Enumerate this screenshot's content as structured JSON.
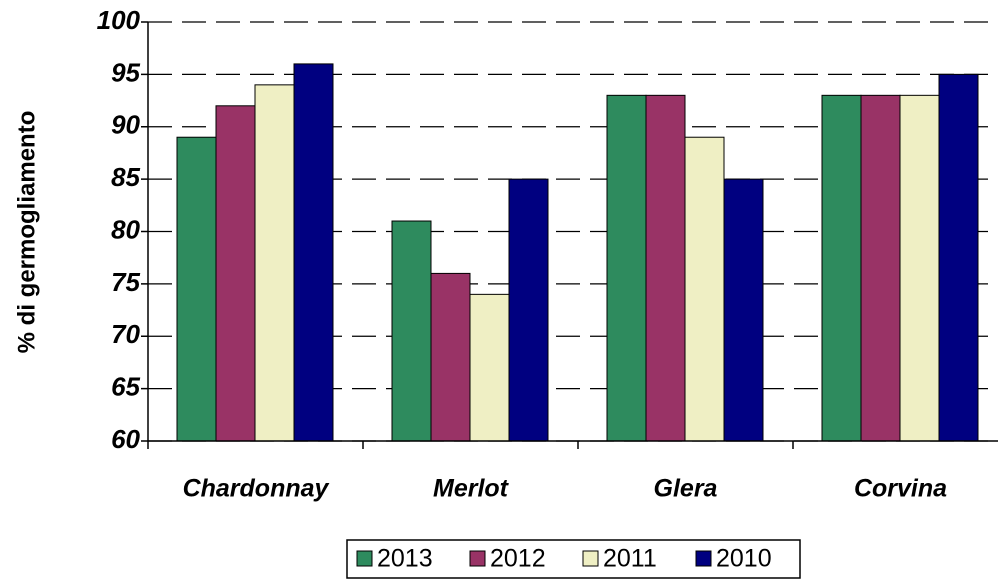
{
  "chart_data": {
    "type": "bar",
    "y_label": "% di germogliamento",
    "categories": [
      "Chardonnay",
      "Merlot",
      "Glera",
      "Corvina"
    ],
    "series": [
      {
        "name": "2013",
        "color": "#2e8b5e",
        "values": [
          89,
          81,
          93,
          93
        ]
      },
      {
        "name": "2012",
        "color": "#993366",
        "values": [
          92,
          76,
          93,
          93
        ]
      },
      {
        "name": "2011",
        "color": "#efefc4",
        "values": [
          94,
          74,
          89,
          93
        ]
      },
      {
        "name": "2010",
        "color": "#000080",
        "values": [
          96,
          85,
          85,
          95
        ]
      }
    ],
    "ylim": [
      60,
      100
    ],
    "yticks": [
      60,
      65,
      70,
      75,
      80,
      85,
      90,
      95,
      100
    ],
    "grid": true,
    "legend": "bottom"
  }
}
